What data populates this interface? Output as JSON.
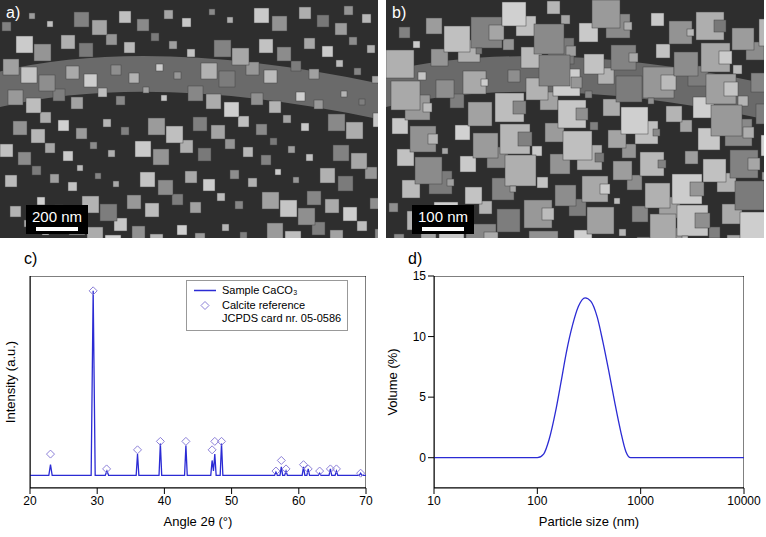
{
  "images": [
    {
      "panel": "a)",
      "scale_bar": "200 nm"
    },
    {
      "panel": "b)",
      "scale_bar": "100 nm"
    }
  ],
  "chart_data": [
    {
      "panel": "c)",
      "type": "line",
      "x_label": "Angle 2θ (°)",
      "y_label": "Intensity (a.u.)",
      "xlim": [
        20,
        70
      ],
      "xticks": [
        20,
        30,
        40,
        50,
        60,
        70
      ],
      "ylim": [
        0,
        100
      ],
      "tick_labels": "x",
      "legend": "top-right",
      "series": [
        {
          "name": "Sample CaCO₃",
          "type": "line",
          "line_style": "solid",
          "color": "#2b2bd4",
          "x": [
            20,
            22.8,
            23.05,
            23.3,
            29.1,
            29.4,
            29.7,
            31.2,
            31.45,
            31.7,
            35.8,
            36.0,
            36.2,
            39.2,
            39.4,
            39.6,
            43.0,
            43.2,
            43.4,
            46.9,
            47.1,
            47.3,
            47.5,
            47.7,
            48.3,
            48.5,
            48.7,
            56.4,
            56.6,
            56.8,
            57.2,
            57.4,
            57.6,
            57.9,
            58.1,
            58.3,
            60.5,
            60.7,
            60.9,
            61.2,
            61.4,
            61.6,
            62.9,
            63.1,
            63.3,
            64.5,
            64.7,
            64.9,
            65.4,
            65.6,
            65.8,
            69.0,
            69.2,
            69.4,
            70
          ],
          "values": [
            6,
            6,
            11,
            6,
            6,
            93,
            6,
            6,
            8,
            6,
            6,
            16,
            6,
            6,
            21,
            6,
            6,
            20,
            6,
            6,
            13,
            8,
            16,
            6,
            6,
            21,
            6,
            6,
            7.5,
            6,
            6,
            10,
            6,
            6,
            8,
            6,
            6,
            10,
            6,
            6,
            9,
            6,
            6,
            7,
            6,
            6,
            9,
            6,
            6,
            8,
            6,
            6,
            7,
            6,
            6
          ]
        },
        {
          "name": "Calcite reference JCPDS card nr. 05-0586",
          "type": "scatter",
          "marker": "diamond",
          "color": "#8c80d8",
          "x": [
            23.05,
            29.4,
            31.4,
            36.0,
            39.4,
            43.2,
            47.1,
            47.5,
            48.5,
            56.6,
            57.4,
            58.1,
            60.7,
            61.4,
            63.1,
            64.7,
            65.6,
            69.2
          ],
          "values": [
            16,
            93,
            9,
            18,
            22,
            22,
            18,
            22,
            22,
            8,
            13,
            9,
            11,
            9,
            8,
            9,
            9,
            7
          ]
        }
      ]
    },
    {
      "panel": "d)",
      "type": "line",
      "x_label": "Particle size (nm)",
      "y_label": "Volume (%)",
      "log": "x",
      "xlim": [
        10,
        10000
      ],
      "xticks": [
        10,
        100,
        1000,
        10000
      ],
      "ylim": [
        -2.5,
        15
      ],
      "yticks": [
        0,
        5,
        10,
        15
      ],
      "color": "#2b2bd4",
      "line_style": "solid",
      "x": [
        10,
        100,
        115,
        130,
        150,
        170,
        190,
        220,
        250,
        290,
        330,
        380,
        430,
        490,
        560,
        640,
        720,
        800,
        10000
      ],
      "values": [
        0,
        0,
        0.3,
        1.5,
        3.8,
        6.3,
        8.6,
        11,
        12.5,
        13.2,
        12.9,
        11.6,
        9.6,
        7.2,
        4.6,
        2.2,
        0.5,
        0,
        0
      ]
    }
  ]
}
